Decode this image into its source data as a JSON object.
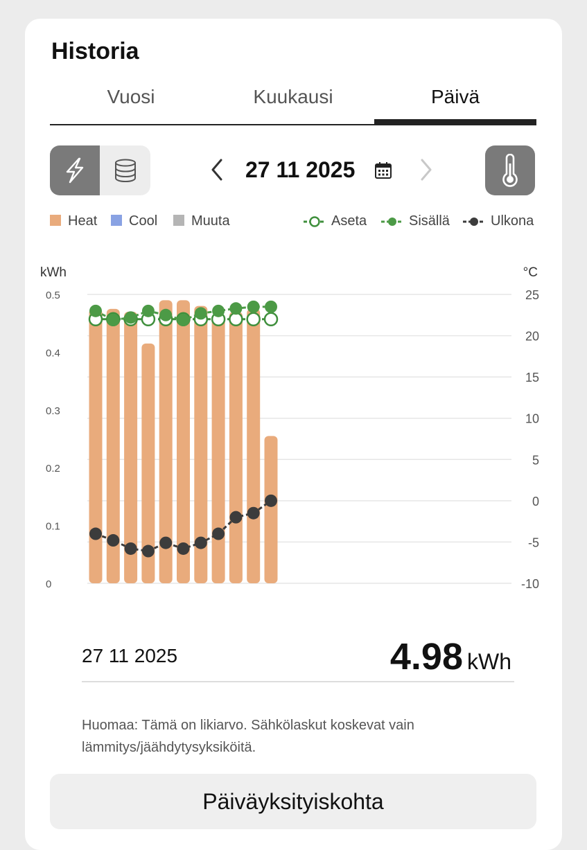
{
  "header": {
    "title": "Historia"
  },
  "tabs": [
    {
      "label": "Vuosi",
      "active": false
    },
    {
      "label": "Kuukausi",
      "active": false
    },
    {
      "label": "Päivä",
      "active": true
    }
  ],
  "controls": {
    "energy_mode_icon": "lightning-icon",
    "storage_mode_icon": "database-icon",
    "active_mode": "energy",
    "date": "27 11 2025",
    "prev_icon": "chevron-left-icon",
    "next_icon": "chevron-right-icon",
    "calendar_icon": "calendar-icon",
    "temperature_icon": "thermometer-icon"
  },
  "legend": {
    "heat": "Heat",
    "cool": "Cool",
    "other": "Muuta",
    "setpoint": "Aseta",
    "indoor": "Sisällä",
    "outdoor": "Ulkona"
  },
  "colors": {
    "heat": "#e9ab7c",
    "cool": "#89a2e3",
    "other": "#b5b5b5",
    "setpoint": "#3f8f3c",
    "indoor": "#4c9a46",
    "outdoor": "#3c3c3c",
    "grid": "#e6e6e6"
  },
  "chart_data": {
    "type": "bar",
    "left_axis_label": "kWh",
    "right_axis_label": "°C",
    "x": [
      0,
      1,
      2,
      3,
      4,
      5,
      6,
      7,
      8,
      9,
      10
    ],
    "x_ticks": [
      "0",
      "2",
      "4",
      "6",
      "8",
      "10",
      "12",
      "14",
      "16",
      "18",
      "20",
      "22"
    ],
    "x_range": [
      0,
      23
    ],
    "left_ticks": [
      "0",
      "0.1",
      "0.2",
      "0.3",
      "0.4",
      "0.5"
    ],
    "ylim_left": [
      0,
      0.5
    ],
    "right_ticks": [
      "-10",
      "-5",
      "0",
      "5",
      "10",
      "15",
      "20",
      "25"
    ],
    "ylim_right": [
      -10,
      25
    ],
    "grid": true,
    "series": [
      {
        "name": "Heat",
        "axis": "left",
        "kind": "bar",
        "values": [
          0.475,
          0.475,
          0.47,
          0.415,
          0.49,
          0.49,
          0.48,
          0.465,
          0.47,
          0.475,
          0.255
        ]
      },
      {
        "name": "Aseta",
        "axis": "right",
        "kind": "line-hollow",
        "values": [
          22,
          22,
          22,
          22,
          22,
          22,
          22,
          22,
          22,
          22,
          22
        ]
      },
      {
        "name": "Sisällä",
        "axis": "right",
        "kind": "line-filled",
        "values": [
          23.0,
          21.9,
          22.2,
          23.0,
          22.5,
          21.9,
          22.7,
          23.0,
          23.3,
          23.5,
          23.5
        ]
      },
      {
        "name": "Ulkona",
        "axis": "right",
        "kind": "line-filled",
        "values": [
          -4,
          -4.8,
          -5.8,
          -6.1,
          -5.1,
          -5.8,
          -5.1,
          -4,
          -2,
          -1.5,
          0
        ]
      }
    ]
  },
  "summary": {
    "date": "27 11 2025",
    "value": "4.98",
    "unit": "kWh"
  },
  "note": "Huomaa: Tämä on likiarvo. Sähkölaskut koskevat vain lämmitys/jäähdytysyksiköitä.",
  "detail_button": "Päiväyksityiskohta"
}
